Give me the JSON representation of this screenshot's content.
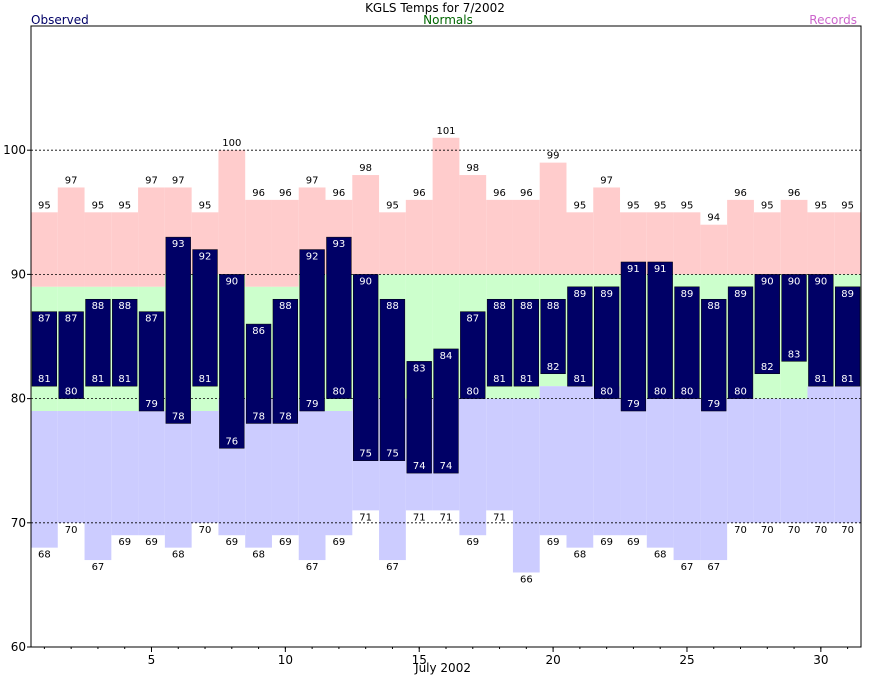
{
  "chart_data": {
    "type": "bar",
    "title": "KGLS Temps for 7/2002",
    "legend": {
      "observed": "Observed",
      "normals": "Normals",
      "records": "Records"
    },
    "xlabel": "July 2002",
    "x_ticks": [
      "5",
      "10",
      "15",
      "20",
      "25",
      "30"
    ],
    "y_ticks": [
      "60",
      "70",
      "80",
      "90",
      "100"
    ],
    "ylim": [
      60,
      110
    ],
    "xlim": [
      0.5,
      31.5
    ],
    "grid": "dashed horizontal lines at 70, 80, 90, 100",
    "colors": {
      "observed": "#000066",
      "observed_text": "#ffffff",
      "normals": "#ccffcc",
      "record_high": "#ffcccc",
      "record_low": "#ccccff",
      "title_observed": "#000066",
      "title_normals": "#006600",
      "title_records": "#cc66cc"
    },
    "days": [
      1,
      2,
      3,
      4,
      5,
      6,
      7,
      8,
      9,
      10,
      11,
      12,
      13,
      14,
      15,
      16,
      17,
      18,
      19,
      20,
      21,
      22,
      23,
      24,
      25,
      26,
      27,
      28,
      29,
      30,
      31
    ],
    "observed_high": [
      87,
      87,
      88,
      88,
      87,
      93,
      92,
      90,
      86,
      88,
      92,
      93,
      90,
      88,
      83,
      84,
      87,
      88,
      88,
      88,
      89,
      89,
      91,
      91,
      89,
      88,
      89,
      90,
      90,
      90,
      89
    ],
    "observed_low": [
      81,
      80,
      81,
      81,
      79,
      78,
      81,
      76,
      78,
      78,
      79,
      80,
      75,
      75,
      74,
      74,
      80,
      81,
      81,
      82,
      81,
      80,
      79,
      80,
      80,
      79,
      80,
      82,
      83,
      81,
      81
    ],
    "normal_high": [
      89,
      89,
      89,
      89,
      89,
      90,
      90,
      90,
      89,
      89,
      90,
      90,
      90,
      90,
      90,
      90,
      90,
      90,
      90,
      90,
      90,
      90,
      90,
      90,
      90,
      90,
      90,
      90,
      90,
      90,
      90
    ],
    "normal_low": [
      79,
      79,
      79,
      79,
      79,
      79,
      79,
      80,
      80,
      80,
      79,
      79,
      80,
      80,
      80,
      80,
      80,
      80,
      80,
      81,
      81,
      81,
      80,
      80,
      80,
      80,
      80,
      80,
      80,
      81,
      81
    ],
    "record_high": [
      95,
      97,
      95,
      95,
      97,
      97,
      95,
      100,
      96,
      96,
      97,
      96,
      98,
      95,
      96,
      101,
      98,
      96,
      96,
      99,
      95,
      97,
      95,
      95,
      95,
      94,
      96,
      95,
      96,
      95,
      95
    ],
    "record_low": [
      68,
      70,
      67,
      69,
      69,
      68,
      70,
      69,
      68,
      69,
      67,
      69,
      71,
      67,
      71,
      71,
      69,
      71,
      66,
      69,
      68,
      69,
      69,
      68,
      67,
      67,
      70,
      70,
      70,
      70,
      70
    ]
  }
}
